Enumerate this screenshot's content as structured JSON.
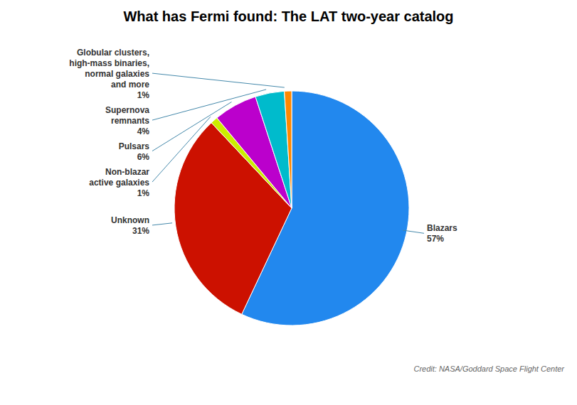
{
  "chart_data": {
    "type": "pie",
    "title": "What has Fermi found: The LAT two-year catalog",
    "annotations": [
      "Credit: NASA/Goddard Space Flight Center"
    ],
    "categories": [
      "Blazars\n57%",
      "Unknown\n31%",
      "Non-blazar\nactive galaxies\n1%",
      "Pulsars\n6%",
      "Supernova\nremnants\n4%",
      "Globular clusters,\nhigh-mass binaries,\nnormal galaxies\nand more\n1%"
    ],
    "values": [
      57,
      31,
      1,
      6,
      4,
      1
    ],
    "colors": [
      "#2288EE",
      "#CC1100",
      "#CCEE00",
      "#BB00CC",
      "#00BBCC",
      "#FF8800"
    ]
  }
}
